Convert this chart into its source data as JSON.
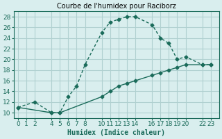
{
  "line1_x": [
    0,
    2,
    4,
    5,
    6,
    7,
    8,
    10,
    11,
    12,
    13,
    14,
    16,
    17,
    18,
    19,
    20,
    22,
    23
  ],
  "line1_y": [
    11,
    12,
    10,
    10,
    13,
    15,
    19,
    25,
    27,
    27.5,
    28,
    28,
    26.5,
    24,
    23,
    20,
    20.5,
    19,
    19
  ],
  "line2_x": [
    0,
    4,
    5,
    10,
    11,
    12,
    13,
    14,
    16,
    17,
    18,
    19,
    20,
    22,
    23
  ],
  "line2_y": [
    11,
    10,
    10,
    13,
    14,
    15,
    15.5,
    16,
    17,
    17.5,
    18,
    18.5,
    19,
    19,
    19
  ],
  "line_color": "#1a6b5a",
  "bg_color": "#d9eeee",
  "grid_color": "#b0d0d0",
  "title": "Courbe de l'humidex pour Raciborz",
  "xlabel": "Humidex (Indice chaleur)",
  "ylabel": "",
  "xlim": [
    -0.5,
    24
  ],
  "ylim": [
    9,
    29
  ],
  "xticks": [
    0,
    1,
    2,
    4,
    5,
    6,
    7,
    8,
    10,
    11,
    12,
    13,
    14,
    16,
    17,
    18,
    19,
    20,
    22,
    23
  ],
  "yticks": [
    10,
    12,
    14,
    16,
    18,
    20,
    22,
    24,
    26,
    28
  ],
  "title_fontsize": 7,
  "axis_fontsize": 7,
  "tick_fontsize": 6.5
}
